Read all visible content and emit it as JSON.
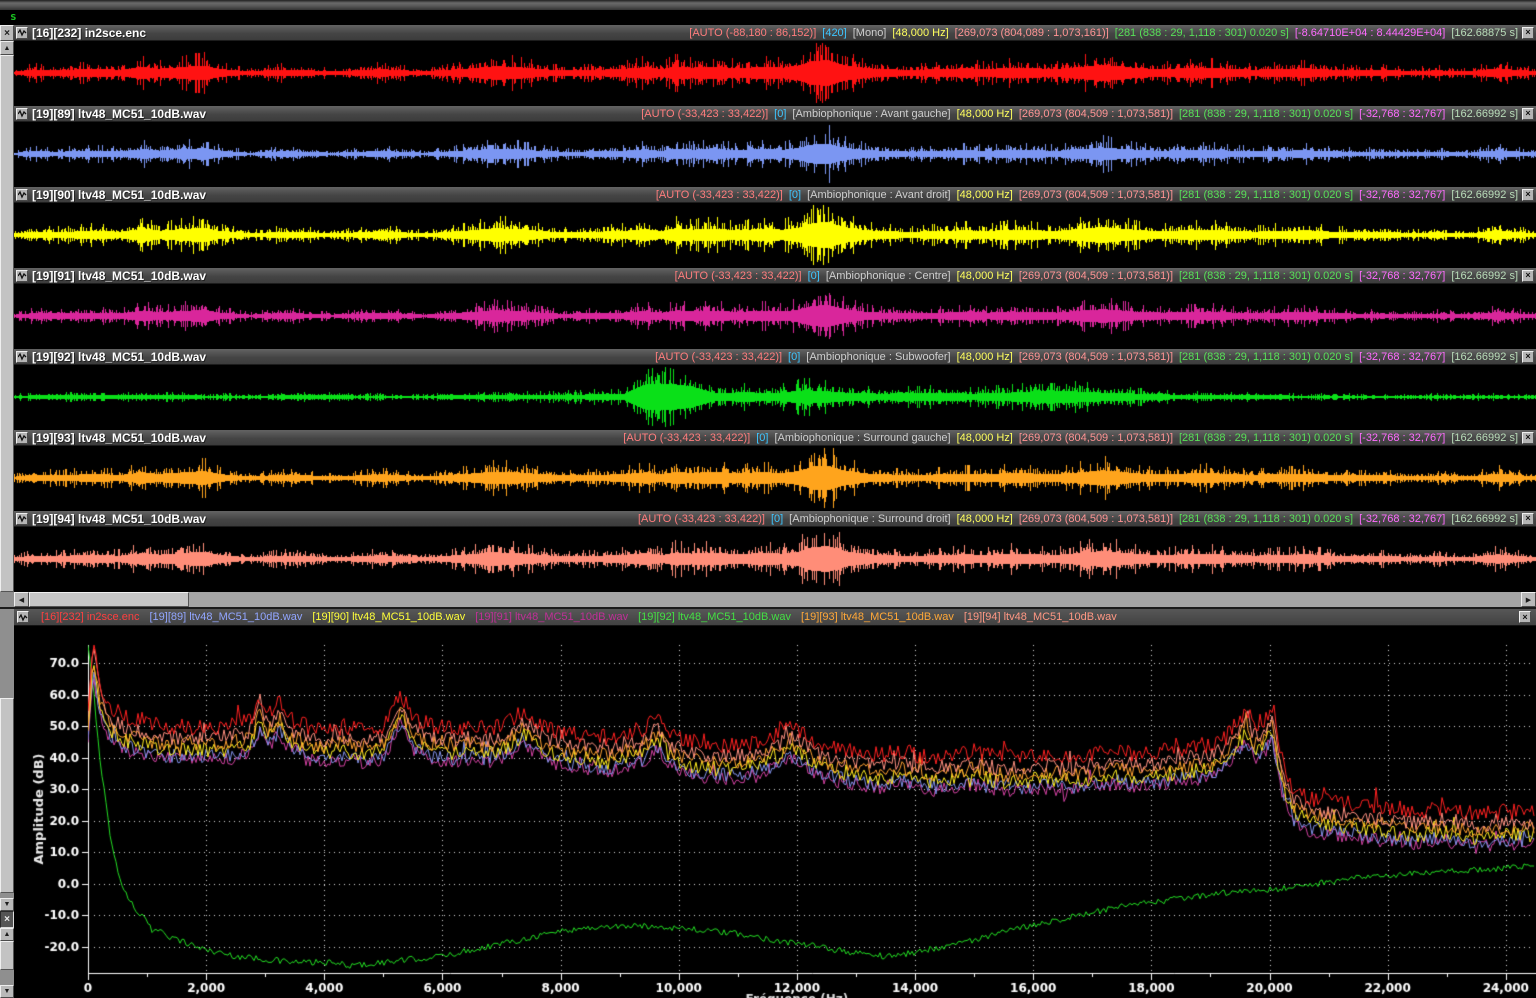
{
  "window": {
    "s_label": "s"
  },
  "palette": {
    "auto": "#ff7d7d",
    "num": "#3ec6ff",
    "chan": "#cfcfcf",
    "rate": "#ffff5e",
    "samp": "#ff9494",
    "sel": "#58e058",
    "rng": "#ff6cff",
    "dur": "#b9dcb9"
  },
  "tracks": [
    {
      "title": "[16][232] in2sce.enc",
      "color": "#ff1212",
      "env": "main",
      "amp": 1.0,
      "seed": 11,
      "meta": [
        [
          "auto",
          "[AUTO (-88,180 : 86,152)]"
        ],
        [
          "num",
          "[420]"
        ],
        [
          "chan",
          "[Mono]"
        ],
        [
          "rate",
          "[48,000 Hz]"
        ],
        [
          "samp",
          "[269,073 (804,089 : 1,073,161)]"
        ],
        [
          "sel",
          "[281 (838 : 29, 1,118 : 301) 0.020 s]"
        ],
        [
          "rng",
          "[-8.64710E+04 : 8.44429E+04]"
        ],
        [
          "dur",
          "[162.68875 s]"
        ]
      ]
    },
    {
      "title": "[19][89] ltv48_MC51_10dB.wav",
      "color": "#7b96f2",
      "env": "main",
      "amp": 0.8,
      "seed": 22,
      "meta": [
        [
          "auto",
          "[AUTO (-33,423 : 33,422)]"
        ],
        [
          "num",
          "[0]"
        ],
        [
          "chan",
          "[Ambiophonique : Avant gauche]"
        ],
        [
          "rate",
          "[48,000 Hz]"
        ],
        [
          "samp",
          "[269,073 (804,509 : 1,073,581)]"
        ],
        [
          "sel",
          "[281 (838 : 29, 1,118 : 301) 0.020 s]"
        ],
        [
          "rng",
          "[-32,768 : 32,767]"
        ],
        [
          "dur",
          "[162.66992 s]"
        ]
      ]
    },
    {
      "title": "[19][90] ltv48_MC51_10dB.wav",
      "color": "#ffff00",
      "env": "main",
      "amp": 1.0,
      "seed": 33,
      "meta": [
        [
          "auto",
          "[AUTO (-33,423 : 33,422)]"
        ],
        [
          "num",
          "[0]"
        ],
        [
          "chan",
          "[Ambiophonique : Avant droit]"
        ],
        [
          "rate",
          "[48,000 Hz]"
        ],
        [
          "samp",
          "[269,073 (804,509 : 1,073,581)]"
        ],
        [
          "sel",
          "[281 (838 : 29, 1,118 : 301) 0.020 s]"
        ],
        [
          "rng",
          "[-32,768 : 32,767]"
        ],
        [
          "dur",
          "[162.66992 s]"
        ]
      ]
    },
    {
      "title": "[19][91] ltv48_MC51_10dB.wav",
      "color": "#d9269b",
      "env": "main",
      "amp": 0.85,
      "seed": 44,
      "meta": [
        [
          "auto",
          "[AUTO (-33,423 : 33,422)]"
        ],
        [
          "num",
          "[0]"
        ],
        [
          "chan",
          "[Ambiophonique : Centre]"
        ],
        [
          "rate",
          "[48,000 Hz]"
        ],
        [
          "samp",
          "[269,073 (804,509 : 1,073,581)]"
        ],
        [
          "sel",
          "[281 (838 : 29, 1,118 : 301) 0.020 s]"
        ],
        [
          "rng",
          "[-32,768 : 32,767]"
        ],
        [
          "dur",
          "[162.66992 s]"
        ]
      ]
    },
    {
      "title": "[19][92] ltv48_MC51_10dB.wav",
      "color": "#0ae018",
      "env": "sub",
      "amp": 1.0,
      "seed": 55,
      "meta": [
        [
          "auto",
          "[AUTO (-33,423 : 33,422)]"
        ],
        [
          "num",
          "[0]"
        ],
        [
          "chan",
          "[Ambiophonique : Subwoofer]"
        ],
        [
          "rate",
          "[48,000 Hz]"
        ],
        [
          "samp",
          "[269,073 (804,509 : 1,073,581)]"
        ],
        [
          "sel",
          "[281 (838 : 29, 1,118 : 301) 0.020 s]"
        ],
        [
          "rng",
          "[-32,768 : 32,767]"
        ],
        [
          "dur",
          "[162.66992 s]"
        ]
      ]
    },
    {
      "title": "[19][93] ltv48_MC51_10dB.wav",
      "color": "#ffa41c",
      "env": "main",
      "amp": 0.95,
      "seed": 66,
      "meta": [
        [
          "auto",
          "[AUTO (-33,423 : 33,422)]"
        ],
        [
          "num",
          "[0]"
        ],
        [
          "chan",
          "[Ambiophonique : Surround gauche]"
        ],
        [
          "rate",
          "[48,000 Hz]"
        ],
        [
          "samp",
          "[269,073 (804,509 : 1,073,581)]"
        ],
        [
          "sel",
          "[281 (838 : 29, 1,118 : 301) 0.020 s]"
        ],
        [
          "rng",
          "[-32,768 : 32,767]"
        ],
        [
          "dur",
          "[162.66992 s]"
        ]
      ]
    },
    {
      "title": "[19][94] ltv48_MC51_10dB.wav",
      "color": "#ff8d78",
      "env": "main",
      "amp": 1.0,
      "seed": 77,
      "meta": [
        [
          "auto",
          "[AUTO (-33,423 : 33,422)]"
        ],
        [
          "num",
          "[0]"
        ],
        [
          "chan",
          "[Ambiophonique : Surround droit]"
        ],
        [
          "rate",
          "[48,000 Hz]"
        ],
        [
          "samp",
          "[269,073 (804,509 : 1,073,581)]"
        ],
        [
          "sel",
          "[281 (838 : 29, 1,118 : 301) 0.020 s]"
        ],
        [
          "rng",
          "[-32,768 : 32,767]"
        ],
        [
          "dur",
          "[162.66992 s]"
        ]
      ]
    }
  ],
  "envelopes": {
    "main": [
      [
        0,
        0.1
      ],
      [
        0.012,
        0.25
      ],
      [
        0.03,
        0.22
      ],
      [
        0.05,
        0.3
      ],
      [
        0.07,
        0.25
      ],
      [
        0.085,
        0.45
      ],
      [
        0.095,
        0.32
      ],
      [
        0.125,
        0.55
      ],
      [
        0.135,
        0.3
      ],
      [
        0.155,
        0.12
      ],
      [
        0.175,
        0.25
      ],
      [
        0.19,
        0.22
      ],
      [
        0.21,
        0.12
      ],
      [
        0.24,
        0.28
      ],
      [
        0.255,
        0.2
      ],
      [
        0.27,
        0.12
      ],
      [
        0.3,
        0.35
      ],
      [
        0.315,
        0.5
      ],
      [
        0.33,
        0.45
      ],
      [
        0.345,
        0.3
      ],
      [
        0.36,
        0.2
      ],
      [
        0.385,
        0.25
      ],
      [
        0.4,
        0.3
      ],
      [
        0.415,
        0.45
      ],
      [
        0.425,
        0.28
      ],
      [
        0.435,
        0.5
      ],
      [
        0.445,
        0.4
      ],
      [
        0.46,
        0.48
      ],
      [
        0.475,
        0.35
      ],
      [
        0.49,
        0.45
      ],
      [
        0.505,
        0.4
      ],
      [
        0.515,
        0.55
      ],
      [
        0.525,
        0.9
      ],
      [
        0.535,
        0.95
      ],
      [
        0.545,
        0.6
      ],
      [
        0.56,
        0.35
      ],
      [
        0.575,
        0.28
      ],
      [
        0.59,
        0.22
      ],
      [
        0.61,
        0.3
      ],
      [
        0.625,
        0.35
      ],
      [
        0.64,
        0.3
      ],
      [
        0.655,
        0.4
      ],
      [
        0.67,
        0.35
      ],
      [
        0.685,
        0.3
      ],
      [
        0.7,
        0.45
      ],
      [
        0.715,
        0.6
      ],
      [
        0.725,
        0.5
      ],
      [
        0.74,
        0.35
      ],
      [
        0.755,
        0.3
      ],
      [
        0.77,
        0.35
      ],
      [
        0.785,
        0.4
      ],
      [
        0.8,
        0.3
      ],
      [
        0.815,
        0.25
      ],
      [
        0.83,
        0.3
      ],
      [
        0.85,
        0.35
      ],
      [
        0.865,
        0.25
      ],
      [
        0.88,
        0.2
      ],
      [
        0.9,
        0.22
      ],
      [
        0.92,
        0.15
      ],
      [
        0.935,
        0.2
      ],
      [
        0.955,
        0.12
      ],
      [
        0.975,
        0.35
      ],
      [
        0.99,
        0.2
      ],
      [
        1,
        0.15
      ]
    ],
    "sub": [
      [
        0,
        0.1
      ],
      [
        0.05,
        0.15
      ],
      [
        0.1,
        0.12
      ],
      [
        0.15,
        0.1
      ],
      [
        0.2,
        0.12
      ],
      [
        0.25,
        0.1
      ],
      [
        0.3,
        0.12
      ],
      [
        0.35,
        0.15
      ],
      [
        0.4,
        0.22
      ],
      [
        0.415,
        0.95
      ],
      [
        0.43,
        1.0
      ],
      [
        0.445,
        0.8
      ],
      [
        0.46,
        0.3
      ],
      [
        0.48,
        0.35
      ],
      [
        0.5,
        0.3
      ],
      [
        0.52,
        0.5
      ],
      [
        0.53,
        0.45
      ],
      [
        0.55,
        0.3
      ],
      [
        0.57,
        0.25
      ],
      [
        0.6,
        0.3
      ],
      [
        0.63,
        0.25
      ],
      [
        0.66,
        0.35
      ],
      [
        0.68,
        0.5
      ],
      [
        0.7,
        0.4
      ],
      [
        0.72,
        0.3
      ],
      [
        0.75,
        0.2
      ],
      [
        0.78,
        0.15
      ],
      [
        0.82,
        0.12
      ],
      [
        0.86,
        0.1
      ],
      [
        0.9,
        0.08
      ],
      [
        0.95,
        0.1
      ],
      [
        1,
        0.08
      ]
    ]
  },
  "scrollbars": {
    "h_left_arrow": "◀",
    "h_right_arrow": "▶",
    "v_up_arrow": "▲",
    "v_down_arrow": "▼",
    "close_glyph": "×"
  },
  "legend": {
    "entries": [
      {
        "label": "[16][232] in2sce.enc",
        "color": "#ff4040"
      },
      {
        "label": "[19][89] ltv48_MC51_10dB.wav",
        "color": "#92a6ff"
      },
      {
        "label": "[19][90] ltv48_MC51_10dB.wav",
        "color": "#ffff3a"
      },
      {
        "label": "[19][91] ltv48_MC51_10dB.wav",
        "color": "#c03098"
      },
      {
        "label": "[19][92] ltv48_MC51_10dB.wav",
        "color": "#44e044"
      },
      {
        "label": "[19][93] ltv48_MC51_10dB.wav",
        "color": "#ffa838"
      },
      {
        "label": "[19][94] ltv48_MC51_10dB.wav",
        "color": "#ff9884"
      }
    ]
  },
  "chart_data": {
    "type": "line",
    "title": "",
    "xlabel": "Fréquence (Hz)",
    "ylabel": "Amplitude (dB)",
    "xlim": [
      0,
      24000
    ],
    "ylim": [
      -28,
      76
    ],
    "grid": "dotted",
    "x_ticks": [
      "0",
      "2,000",
      "4,000",
      "6,000",
      "8,000",
      "10,000",
      "12,000",
      "14,000",
      "16,000",
      "18,000",
      "20,000",
      "22,000",
      "24,000"
    ],
    "y_ticks": [
      "70.0",
      "60.0",
      "50.0",
      "40.0",
      "30.0",
      "20.0",
      "10.0",
      "0.0",
      "-10.0",
      "-20.0"
    ],
    "base_points": [
      [
        0,
        55
      ],
      [
        60,
        72
      ],
      [
        100,
        76
      ],
      [
        150,
        70
      ],
      [
        250,
        60
      ],
      [
        400,
        56
      ],
      [
        600,
        53
      ],
      [
        900,
        52
      ],
      [
        1200,
        50
      ],
      [
        1600,
        50
      ],
      [
        2000,
        50
      ],
      [
        2400,
        50
      ],
      [
        2750,
        52
      ],
      [
        2900,
        59
      ],
      [
        3050,
        54
      ],
      [
        3250,
        58
      ],
      [
        3450,
        52
      ],
      [
        3700,
        50
      ],
      [
        4000,
        49
      ],
      [
        4300,
        50
      ],
      [
        4600,
        49
      ],
      [
        5000,
        50
      ],
      [
        5300,
        60
      ],
      [
        5500,
        53
      ],
      [
        5800,
        50
      ],
      [
        6200,
        49
      ],
      [
        6500,
        50
      ],
      [
        6800,
        49
      ],
      [
        7100,
        51
      ],
      [
        7400,
        55
      ],
      [
        7700,
        50
      ],
      [
        8000,
        48
      ],
      [
        8400,
        47
      ],
      [
        8800,
        46
      ],
      [
        9100,
        48
      ],
      [
        9400,
        49
      ],
      [
        9650,
        53
      ],
      [
        9900,
        47
      ],
      [
        10200,
        45
      ],
      [
        10600,
        44
      ],
      [
        11000,
        44
      ],
      [
        11300,
        45
      ],
      [
        11600,
        47
      ],
      [
        11900,
        50
      ],
      [
        12100,
        48
      ],
      [
        12400,
        44
      ],
      [
        12700,
        43
      ],
      [
        13000,
        42
      ],
      [
        13400,
        41
      ],
      [
        13800,
        42
      ],
      [
        14200,
        40
      ],
      [
        14600,
        41
      ],
      [
        15000,
        42
      ],
      [
        15400,
        40
      ],
      [
        15800,
        40
      ],
      [
        16200,
        41
      ],
      [
        16600,
        40
      ],
      [
        17000,
        41
      ],
      [
        17400,
        42
      ],
      [
        17800,
        41
      ],
      [
        18200,
        42
      ],
      [
        18600,
        43
      ],
      [
        19000,
        44
      ],
      [
        19300,
        48
      ],
      [
        19600,
        55
      ],
      [
        19750,
        50
      ],
      [
        19900,
        52
      ],
      [
        20050,
        56
      ],
      [
        20200,
        40
      ],
      [
        20400,
        30
      ],
      [
        20700,
        27
      ],
      [
        21000,
        26
      ],
      [
        21500,
        25
      ],
      [
        22000,
        24
      ],
      [
        22500,
        23
      ],
      [
        23000,
        24
      ],
      [
        23500,
        22
      ],
      [
        24000,
        23
      ],
      [
        24500,
        23
      ]
    ],
    "green_points": [
      [
        0,
        75
      ],
      [
        100,
        60
      ],
      [
        200,
        40
      ],
      [
        400,
        12
      ],
      [
        600,
        -2
      ],
      [
        800,
        -8
      ],
      [
        1000,
        -12
      ],
      [
        1100,
        -16
      ],
      [
        1200,
        -14
      ],
      [
        1400,
        -17
      ],
      [
        1700,
        -19
      ],
      [
        2000,
        -21
      ],
      [
        2500,
        -23
      ],
      [
        3000,
        -24
      ],
      [
        3500,
        -25
      ],
      [
        4000,
        -25
      ],
      [
        4500,
        -26
      ],
      [
        5000,
        -25
      ],
      [
        5500,
        -24
      ],
      [
        6000,
        -23
      ],
      [
        6500,
        -21
      ],
      [
        7000,
        -19
      ],
      [
        7500,
        -17
      ],
      [
        8000,
        -15
      ],
      [
        8500,
        -14
      ],
      [
        9000,
        -13.5
      ],
      [
        9500,
        -13.5
      ],
      [
        10000,
        -14
      ],
      [
        10500,
        -15
      ],
      [
        11000,
        -16
      ],
      [
        11500,
        -17.5
      ],
      [
        12000,
        -19
      ],
      [
        12500,
        -20.5
      ],
      [
        13000,
        -22
      ],
      [
        13500,
        -23
      ],
      [
        13800,
        -22.5
      ],
      [
        14200,
        -21
      ],
      [
        14700,
        -19
      ],
      [
        15200,
        -17
      ],
      [
        16000,
        -13
      ],
      [
        16800,
        -10
      ],
      [
        17600,
        -7
      ],
      [
        18400,
        -5
      ],
      [
        19200,
        -3
      ],
      [
        20000,
        -2
      ],
      [
        20800,
        0
      ],
      [
        21600,
        2
      ],
      [
        22400,
        3
      ],
      [
        23200,
        4
      ],
      [
        24000,
        5
      ],
      [
        24500,
        5.5
      ]
    ],
    "series": [
      {
        "name": "[19][92] ltv48_MC51_10dB.wav",
        "color": "#22dd22",
        "source": "green_points",
        "offset_db": 0,
        "noise": 1.0
      },
      {
        "name": "[19][91] ltv48_MC51_10dB.wav",
        "color": "#d040a0",
        "source": "base_points",
        "offset_db": -10.5,
        "noise": 2.2
      },
      {
        "name": "[19][89] ltv48_MC51_10dB.wav",
        "color": "#8090e8",
        "source": "base_points",
        "offset_db": -9.5,
        "noise": 2.2
      },
      {
        "name": "[19][90] ltv48_MC51_10dB.wav",
        "color": "#ffee20",
        "source": "base_points",
        "offset_db": -7.5,
        "noise": 2.4
      },
      {
        "name": "[19][93] ltv48_MC51_10dB.wav",
        "color": "#ffa030",
        "source": "base_points",
        "offset_db": -5.5,
        "noise": 2.4
      },
      {
        "name": "[19][94] ltv48_MC51_10dB.wav",
        "color": "#ff9080",
        "source": "base_points",
        "offset_db": -3.5,
        "noise": 2.4
      },
      {
        "name": "[16][232] in2sce.enc",
        "color": "#ff2020",
        "source": "base_points",
        "offset_db": 0,
        "noise": 2.6
      }
    ]
  }
}
